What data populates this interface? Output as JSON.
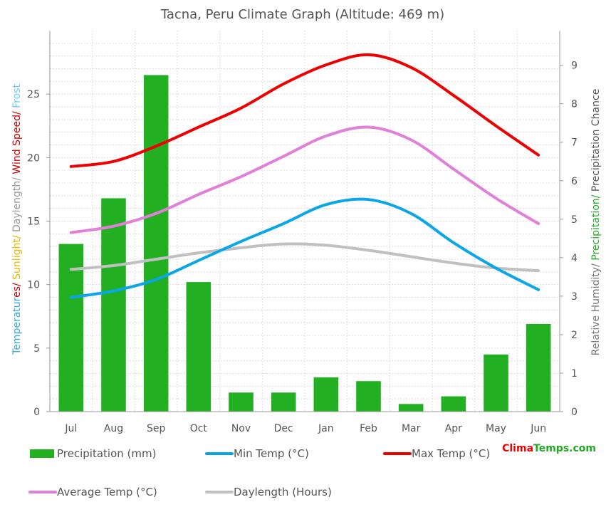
{
  "chart_data": {
    "type": "bar+line",
    "title": "Tacna, Peru Climate Graph (Altitude: 469 m)",
    "categories": [
      "Jul",
      "Aug",
      "Sep",
      "Oct",
      "Nov",
      "Dec",
      "Jan",
      "Feb",
      "Mar",
      "Apr",
      "May",
      "Jun"
    ],
    "left_axis": {
      "label_parts": [
        {
          "text": "Temperatures/ ",
          "color": "#3aa6e0",
          "accent": "#cc0000",
          "accent_from": 10
        },
        {
          "text": "Sunlight/ ",
          "color": "#e6b800"
        },
        {
          "text": "Daylength/ ",
          "color": "#999999"
        },
        {
          "text": "Wind Speed/ ",
          "color": "#cc0000"
        },
        {
          "text": "Frost",
          "color": "#66ccff"
        }
      ],
      "ylim": [
        0,
        30
      ],
      "ticks": [
        0,
        5,
        10,
        15,
        20,
        25
      ]
    },
    "right_axis": {
      "label_parts": [
        {
          "text": "Relative Humidity/ ",
          "color": "#777777"
        },
        {
          "text": "Precipitation/ ",
          "color": "#22aa22"
        },
        {
          "text": "Precipitation Chance",
          "color": "#555555"
        }
      ],
      "ylim": [
        0,
        9.9
      ],
      "ticks": [
        0,
        1,
        2,
        3,
        4,
        5,
        6,
        7,
        8,
        9
      ]
    },
    "bars": {
      "name": "Precipitation (mm)",
      "color": "#22b022",
      "values": [
        13.2,
        16.8,
        26.5,
        10.2,
        1.5,
        1.5,
        2.7,
        2.4,
        0.6,
        1.2,
        4.5,
        6.9
      ]
    },
    "series": [
      {
        "name": "Min Temp (°C)",
        "color": "#0aa6e8",
        "values": [
          9.0,
          9.5,
          10.4,
          11.9,
          13.4,
          14.8,
          16.3,
          16.7,
          15.6,
          13.3,
          11.3,
          9.6
        ]
      },
      {
        "name": "Max Temp (°C)",
        "color": "#ee0000",
        "values": [
          19.3,
          19.7,
          20.9,
          22.4,
          23.9,
          25.8,
          27.3,
          28.1,
          27.1,
          24.9,
          22.5,
          20.2
        ]
      },
      {
        "name": "Average Temp (°C)",
        "color": "#e080d8",
        "values": [
          14.1,
          14.6,
          15.6,
          17.1,
          18.5,
          20.1,
          21.7,
          22.4,
          21.4,
          19.1,
          16.8,
          14.8
        ]
      },
      {
        "name": "Daylength (Hours)",
        "color": "#c0c0c0",
        "values": [
          11.2,
          11.5,
          12.0,
          12.5,
          12.9,
          13.2,
          13.1,
          12.7,
          12.2,
          11.7,
          11.3,
          11.1
        ]
      }
    ],
    "grid": true,
    "legend_position": "bottom"
  },
  "brand": {
    "part1": "Clima",
    "part2": "Temps",
    "part3": ".com",
    "color1": "#ee0000",
    "color2": "#22aa22"
  }
}
